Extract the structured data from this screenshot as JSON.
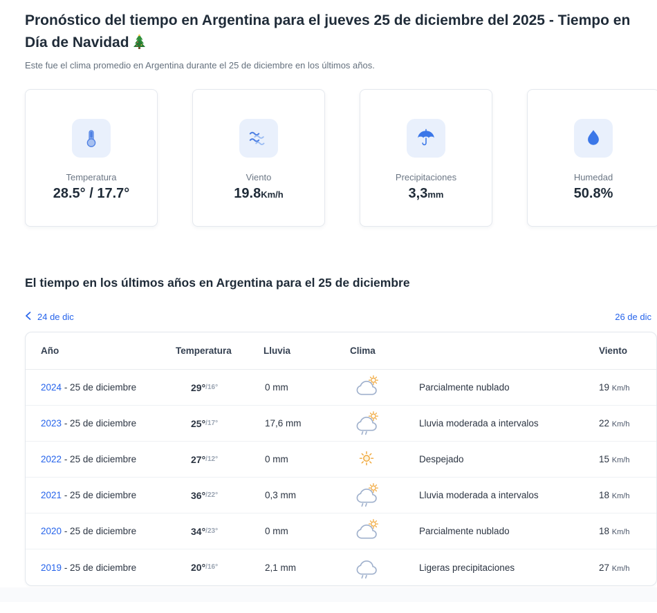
{
  "page": {
    "title": "Pronóstico del tiempo en Argentina para el jueves 25 de diciembre del 2025 - Tiempo en Día de Navidad",
    "subtitle": "Este fue el clima promedio en Argentina durante el 25 de diciembre en los últimos años."
  },
  "summary_cards": [
    {
      "icon": "thermometer-icon",
      "label": "Temperatura",
      "value": "28.5° / 17.7°",
      "unit": ""
    },
    {
      "icon": "wind-waves-icon",
      "label": "Viento",
      "value": "19.8",
      "unit": "Km/h"
    },
    {
      "icon": "umbrella-icon",
      "label": "Precipitaciones",
      "value": "3,3",
      "unit": "mm"
    },
    {
      "icon": "water-drop-icon",
      "label": "Humedad",
      "value": "50.8%",
      "unit": ""
    }
  ],
  "history": {
    "section_title": "El tiempo en los últimos años en Argentina para el 25 de diciembre",
    "prev_link": "24 de dic",
    "next_link": "26 de dic",
    "table": {
      "headers": [
        "Año",
        "Temperatura",
        "Lluvia",
        "Clima",
        "Viento"
      ],
      "rows": [
        {
          "year": "2024",
          "date_suffix": "- 25 de diciembre",
          "temp_max": "29°",
          "temp_min": "/16°",
          "rain": "0 mm",
          "icon": "partly-cloudy",
          "condition": "Parcialmente nublado",
          "wind": "19",
          "wind_unit": "Km/h"
        },
        {
          "year": "2023",
          "date_suffix": "- 25 de diciembre",
          "temp_max": "25°",
          "temp_min": "/17°",
          "rain": "17,6 mm",
          "icon": "rain-sun",
          "condition": "Lluvia moderada a intervalos",
          "wind": "22",
          "wind_unit": "Km/h"
        },
        {
          "year": "2022",
          "date_suffix": "- 25 de diciembre",
          "temp_max": "27°",
          "temp_min": "/12°",
          "rain": "0 mm",
          "icon": "sun",
          "condition": "Despejado",
          "wind": "15",
          "wind_unit": "Km/h"
        },
        {
          "year": "2021",
          "date_suffix": "- 25 de diciembre",
          "temp_max": "36°",
          "temp_min": "/22°",
          "rain": "0,3 mm",
          "icon": "rain-sun",
          "condition": "Lluvia moderada a intervalos",
          "wind": "18",
          "wind_unit": "Km/h"
        },
        {
          "year": "2020",
          "date_suffix": "- 25 de diciembre",
          "temp_max": "34°",
          "temp_min": "/23°",
          "rain": "0 mm",
          "icon": "partly-cloudy",
          "condition": "Parcialmente nublado",
          "wind": "18",
          "wind_unit": "Km/h"
        },
        {
          "year": "2019",
          "date_suffix": "- 25 de diciembre",
          "temp_max": "20°",
          "temp_min": "/16°",
          "rain": "2,1 mm",
          "icon": "rain",
          "condition": "Ligeras precipitaciones",
          "wind": "27",
          "wind_unit": "Km/h"
        }
      ]
    }
  },
  "colors": {
    "accent_blue": "#2563eb",
    "icon_blue": "#3b77e8",
    "icon_tile_bg": "#e9f0fc",
    "sun_yellow": "#f0a638",
    "cloud_outline": "#9fb0cc",
    "text_dark": "#1f2b38",
    "text_gray": "#64707d"
  }
}
